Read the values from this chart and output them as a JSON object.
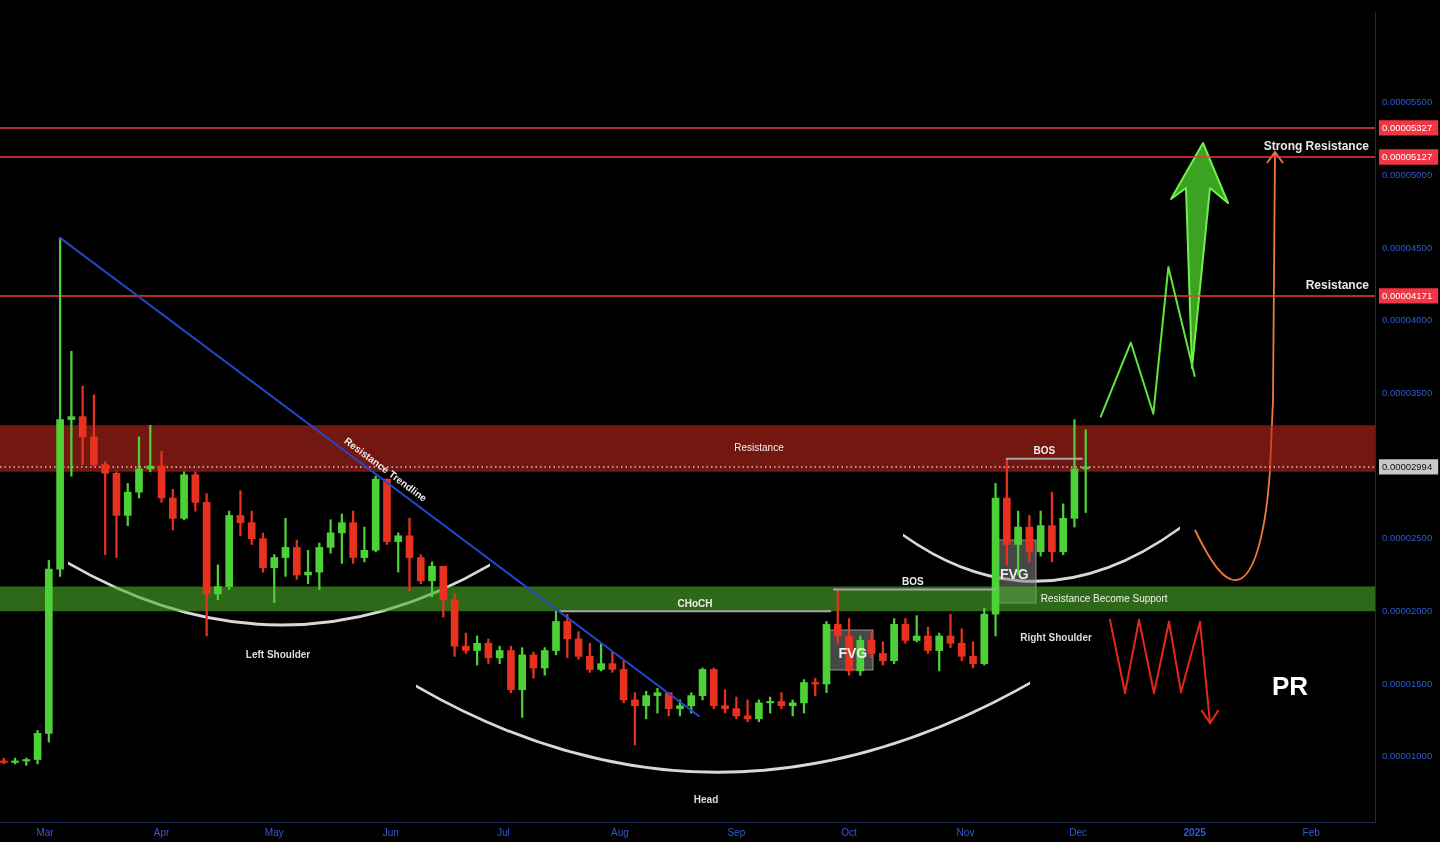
{
  "chart_data": {
    "type": "candlestick",
    "xlim": [
      "2024-02-18",
      "2025-02-18"
    ],
    "xticks": [
      {
        "value": "2024-03-01",
        "label": "Mar"
      },
      {
        "value": "2024-04-01",
        "label": "Apr"
      },
      {
        "value": "2024-05-01",
        "label": "May"
      },
      {
        "value": "2024-06-01",
        "label": "Jun"
      },
      {
        "value": "2024-07-01",
        "label": "Jul"
      },
      {
        "value": "2024-08-01",
        "label": "Aug"
      },
      {
        "value": "2024-09-01",
        "label": "Sep"
      },
      {
        "value": "2024-10-01",
        "label": "Oct"
      },
      {
        "value": "2024-11-01",
        "label": "Nov"
      },
      {
        "value": "2024-12-01",
        "label": "Dec"
      },
      {
        "value": "2025-01-01",
        "label": "2025"
      },
      {
        "value": "2025-02-01",
        "label": "Feb"
      }
    ],
    "ylim": [
      5.5e-06,
      6.12e-05
    ],
    "yticks": [
      {
        "value": 1e-05,
        "label": "0.00001000"
      },
      {
        "value": 1.5e-05,
        "label": "0.00001500"
      },
      {
        "value": 2e-05,
        "label": "0.00002000"
      },
      {
        "value": 2.5e-05,
        "label": "0.00002500"
      },
      {
        "value": 2.994e-05,
        "label": "0.00002994"
      },
      {
        "value": 3.5e-05,
        "label": "0.00003500"
      },
      {
        "value": 4e-05,
        "label": "0.00004000"
      },
      {
        "value": 4.171e-05,
        "label": "0.00004171"
      },
      {
        "value": 4.5e-05,
        "label": "0.00004500"
      },
      {
        "value": 5e-05,
        "label": "0.00005000"
      },
      {
        "value": 5.127e-05,
        "label": "0.00005127"
      },
      {
        "value": 5.327e-05,
        "label": "0.00005327"
      },
      {
        "value": 5.5e-05,
        "label": "0.00005500"
      }
    ],
    "series": [
      {
        "x": [
          "2024-02-19",
          "2024-02-22",
          "2024-02-25",
          "2024-02-28",
          "2024-03-02",
          "2024-03-05",
          "2024-03-08",
          "2024-03-11",
          "2024-03-14",
          "2024-03-17",
          "2024-03-20",
          "2024-03-23",
          "2024-03-26",
          "2024-03-29",
          "2024-04-01",
          "2024-04-04",
          "2024-04-07",
          "2024-04-10",
          "2024-04-13",
          "2024-04-16",
          "2024-04-19",
          "2024-04-22",
          "2024-04-25",
          "2024-04-28",
          "2024-05-01",
          "2024-05-04",
          "2024-05-07",
          "2024-05-10",
          "2024-05-13",
          "2024-05-16",
          "2024-05-19",
          "2024-05-22",
          "2024-05-25",
          "2024-05-28",
          "2024-05-31",
          "2024-06-03",
          "2024-06-06",
          "2024-06-09",
          "2024-06-12",
          "2024-06-15",
          "2024-06-18",
          "2024-06-21",
          "2024-06-24",
          "2024-06-27",
          "2024-06-30",
          "2024-07-03",
          "2024-07-06",
          "2024-07-09",
          "2024-07-12",
          "2024-07-15",
          "2024-07-18",
          "2024-07-21",
          "2024-07-24",
          "2024-07-27",
          "2024-07-30",
          "2024-08-02",
          "2024-08-05",
          "2024-08-08",
          "2024-08-11",
          "2024-08-14",
          "2024-08-17",
          "2024-08-20",
          "2024-08-23",
          "2024-08-26",
          "2024-08-29",
          "2024-09-01",
          "2024-09-04",
          "2024-09-07",
          "2024-09-10",
          "2024-09-13",
          "2024-09-16",
          "2024-09-19",
          "2024-09-22",
          "2024-09-25",
          "2024-09-28",
          "2024-10-01",
          "2024-10-04",
          "2024-10-07",
          "2024-10-10",
          "2024-10-13",
          "2024-10-16",
          "2024-10-19",
          "2024-10-22",
          "2024-10-25",
          "2024-10-28",
          "2024-10-31",
          "2024-11-03",
          "2024-11-06",
          "2024-11-09",
          "2024-11-12",
          "2024-11-15",
          "2024-11-18",
          "2024-11-21",
          "2024-11-24",
          "2024-11-27",
          "2024-11-30",
          "2024-12-03"
        ],
        "ohlc": [
          [
            9.7e-06,
            9.9e-06,
            9.5e-06,
            9.6e-06
          ],
          [
            9.6e-06,
            9.9e-06,
            9.5e-06,
            9.7e-06
          ],
          [
            9.7e-06,
            9.9e-06,
            9.4e-06,
            9.8e-06
          ],
          [
            9.8e-06,
            1.18e-05,
            9.5e-06,
            1.16e-05
          ],
          [
            1.16e-05,
            2.35e-05,
            1.1e-05,
            2.29e-05
          ],
          [
            2.29e-05,
            4.57e-05,
            2.24e-05,
            3.32e-05
          ],
          [
            3.32e-05,
            3.79e-05,
            2.93e-05,
            3.34e-05
          ],
          [
            3.34e-05,
            3.55e-05,
            3.01e-05,
            3.2e-05
          ],
          [
            3.2e-05,
            3.49e-05,
            3e-05,
            3.01e-05
          ],
          [
            3.01e-05,
            3.03e-05,
            2.39e-05,
            2.95e-05
          ],
          [
            2.95e-05,
            2.96e-05,
            2.37e-05,
            2.66e-05
          ],
          [
            2.66e-05,
            2.88e-05,
            2.59e-05,
            2.82e-05
          ],
          [
            2.82e-05,
            3.2e-05,
            2.78e-05,
            2.98e-05
          ],
          [
            2.98e-05,
            3.28e-05,
            2.96e-05,
            3e-05
          ],
          [
            3e-05,
            3.1e-05,
            2.75e-05,
            2.78e-05
          ],
          [
            2.78e-05,
            2.84e-05,
            2.56e-05,
            2.64e-05
          ],
          [
            2.64e-05,
            2.96e-05,
            2.63e-05,
            2.94e-05
          ],
          [
            2.94e-05,
            2.96e-05,
            2.69e-05,
            2.75e-05
          ],
          [
            2.75e-05,
            2.81e-05,
            1.83e-05,
            2.12e-05
          ],
          [
            2.12e-05,
            2.32e-05,
            2.08e-05,
            2.17e-05
          ],
          [
            2.17e-05,
            2.69e-05,
            2.15e-05,
            2.66e-05
          ],
          [
            2.66e-05,
            2.83e-05,
            2.52e-05,
            2.61e-05
          ],
          [
            2.61e-05,
            2.69e-05,
            2.46e-05,
            2.5e-05
          ],
          [
            2.5e-05,
            2.54e-05,
            2.27e-05,
            2.3e-05
          ],
          [
            2.3e-05,
            2.39e-05,
            2.06e-05,
            2.37e-05
          ],
          [
            2.37e-05,
            2.64e-05,
            2.24e-05,
            2.44e-05
          ],
          [
            2.44e-05,
            2.49e-05,
            2.22e-05,
            2.25e-05
          ],
          [
            2.25e-05,
            2.42e-05,
            2.19e-05,
            2.27e-05
          ],
          [
            2.27e-05,
            2.47e-05,
            2.15e-05,
            2.44e-05
          ],
          [
            2.44e-05,
            2.63e-05,
            2.4e-05,
            2.54e-05
          ],
          [
            2.54e-05,
            2.67e-05,
            2.33e-05,
            2.61e-05
          ],
          [
            2.61e-05,
            2.69e-05,
            2.33e-05,
            2.37e-05
          ],
          [
            2.37e-05,
            2.58e-05,
            2.34e-05,
            2.42e-05
          ],
          [
            2.42e-05,
            2.93e-05,
            2.41e-05,
            2.91e-05
          ],
          [
            2.91e-05,
            2.91e-05,
            2.46e-05,
            2.48e-05
          ],
          [
            2.48e-05,
            2.54e-05,
            2.27e-05,
            2.52e-05
          ],
          [
            2.52e-05,
            2.64e-05,
            2.14e-05,
            2.37e-05
          ],
          [
            2.37e-05,
            2.39e-05,
            2.19e-05,
            2.21e-05
          ],
          [
            2.21e-05,
            2.34e-05,
            2.1e-05,
            2.31e-05
          ],
          [
            2.31e-05,
            2.31e-05,
            1.96e-05,
            2.08e-05
          ],
          [
            2.08e-05,
            2.12e-05,
            1.69e-05,
            1.76e-05
          ],
          [
            1.76e-05,
            1.85e-05,
            1.71e-05,
            1.73e-05
          ],
          [
            1.73e-05,
            1.83e-05,
            1.63e-05,
            1.78e-05
          ],
          [
            1.78e-05,
            1.81e-05,
            1.64e-05,
            1.68e-05
          ],
          [
            1.68e-05,
            1.76e-05,
            1.64e-05,
            1.73e-05
          ],
          [
            1.73e-05,
            1.76e-05,
            1.44e-05,
            1.46e-05
          ],
          [
            1.46e-05,
            1.75e-05,
            1.27e-05,
            1.7e-05
          ],
          [
            1.7e-05,
            1.72e-05,
            1.54e-05,
            1.61e-05
          ],
          [
            1.61e-05,
            1.75e-05,
            1.56e-05,
            1.73e-05
          ],
          [
            1.73e-05,
            2e-05,
            1.7e-05,
            1.93e-05
          ],
          [
            1.93e-05,
            1.98e-05,
            1.68e-05,
            1.81e-05
          ],
          [
            1.81e-05,
            1.86e-05,
            1.67e-05,
            1.69e-05
          ],
          [
            1.69e-05,
            1.78e-05,
            1.58e-05,
            1.6e-05
          ],
          [
            1.6e-05,
            1.78e-05,
            1.59e-05,
            1.64e-05
          ],
          [
            1.64e-05,
            1.72e-05,
            1.58e-05,
            1.6e-05
          ],
          [
            1.6e-05,
            1.66e-05,
            1.37e-05,
            1.39e-05
          ],
          [
            1.39e-05,
            1.44e-05,
            1.08e-05,
            1.35e-05
          ],
          [
            1.35e-05,
            1.45e-05,
            1.26e-05,
            1.42e-05
          ],
          [
            1.42e-05,
            1.47e-05,
            1.3e-05,
            1.44e-05
          ],
          [
            1.44e-05,
            1.44e-05,
            1.28e-05,
            1.33e-05
          ],
          [
            1.33e-05,
            1.39e-05,
            1.28e-05,
            1.35e-05
          ],
          [
            1.35e-05,
            1.44e-05,
            1.3e-05,
            1.42e-05
          ],
          [
            1.42e-05,
            1.61e-05,
            1.39e-05,
            1.6e-05
          ],
          [
            1.6e-05,
            1.61e-05,
            1.33e-05,
            1.35e-05
          ],
          [
            1.35e-05,
            1.46e-05,
            1.3e-05,
            1.33e-05
          ],
          [
            1.33e-05,
            1.41e-05,
            1.26e-05,
            1.28e-05
          ],
          [
            1.28e-05,
            1.39e-05,
            1.24e-05,
            1.26e-05
          ],
          [
            1.26e-05,
            1.39e-05,
            1.24e-05,
            1.37e-05
          ],
          [
            1.37e-05,
            1.41e-05,
            1.3e-05,
            1.38e-05
          ],
          [
            1.38e-05,
            1.44e-05,
            1.33e-05,
            1.35e-05
          ],
          [
            1.35e-05,
            1.39e-05,
            1.28e-05,
            1.37e-05
          ],
          [
            1.37e-05,
            1.53e-05,
            1.3e-05,
            1.51e-05
          ],
          [
            1.51e-05,
            1.54e-05,
            1.42e-05,
            1.5e-05
          ],
          [
            1.5e-05,
            1.93e-05,
            1.44e-05,
            1.91e-05
          ],
          [
            1.91e-05,
            2.15e-05,
            1.78e-05,
            1.83e-05
          ],
          [
            1.83e-05,
            1.95e-05,
            1.56e-05,
            1.59e-05
          ],
          [
            1.59e-05,
            1.83e-05,
            1.56e-05,
            1.8e-05
          ],
          [
            1.8e-05,
            1.86e-05,
            1.68e-05,
            1.71e-05
          ],
          [
            1.71e-05,
            1.79e-05,
            1.63e-05,
            1.66e-05
          ],
          [
            1.66e-05,
            1.95e-05,
            1.64e-05,
            1.91e-05
          ],
          [
            1.91e-05,
            1.95e-05,
            1.78e-05,
            1.8e-05
          ],
          [
            1.8e-05,
            1.97e-05,
            1.79e-05,
            1.83e-05
          ],
          [
            1.83e-05,
            1.89e-05,
            1.71e-05,
            1.73e-05
          ],
          [
            1.73e-05,
            1.85e-05,
            1.59e-05,
            1.83e-05
          ],
          [
            1.83e-05,
            1.98e-05,
            1.75e-05,
            1.78e-05
          ],
          [
            1.78e-05,
            1.88e-05,
            1.66e-05,
            1.69e-05
          ],
          [
            1.69e-05,
            1.79e-05,
            1.61e-05,
            1.64e-05
          ],
          [
            1.64e-05,
            2.02e-05,
            1.63e-05,
            1.98e-05
          ],
          [
            1.98e-05,
            2.88e-05,
            1.83e-05,
            2.78e-05
          ],
          [
            2.78e-05,
            3.05e-05,
            2.32e-05,
            2.46e-05
          ],
          [
            2.46e-05,
            2.69e-05,
            2.25e-05,
            2.58e-05
          ],
          [
            2.58e-05,
            2.66e-05,
            2.34e-05,
            2.41e-05
          ],
          [
            2.41e-05,
            2.69e-05,
            2.38e-05,
            2.59e-05
          ],
          [
            2.59e-05,
            2.82e-05,
            2.34e-05,
            2.41e-05
          ],
          [
            2.41e-05,
            2.74e-05,
            2.39e-05,
            2.64e-05
          ],
          [
            2.64e-05,
            3.32e-05,
            2.58e-05,
            2.98e-05
          ],
          [
            2.98e-05,
            3.25e-05,
            2.68e-05,
            2.994e-05
          ]
        ],
        "colors": [
          "#e8321f",
          "#4cd137",
          "#4cd137",
          "#4cd137",
          "#4cd137",
          "#4cd137",
          "#4cd137",
          "#e8321f",
          "#e8321f",
          "#e8321f",
          "#e8321f",
          "#4cd137",
          "#4cd137",
          "#4cd137",
          "#e8321f",
          "#e8321f",
          "#4cd137",
          "#e8321f",
          "#e8321f",
          "#4cd137",
          "#4cd137",
          "#e8321f",
          "#e8321f",
          "#e8321f",
          "#4cd137",
          "#4cd137",
          "#e8321f",
          "#4cd137",
          "#4cd137",
          "#4cd137",
          "#4cd137",
          "#e8321f",
          "#4cd137",
          "#4cd137",
          "#e8321f",
          "#4cd137",
          "#e8321f",
          "#e8321f",
          "#4cd137",
          "#e8321f",
          "#e8321f",
          "#e8321f",
          "#4cd137",
          "#e8321f",
          "#4cd137",
          "#e8321f",
          "#4cd137",
          "#e8321f",
          "#4cd137",
          "#4cd137",
          "#e8321f",
          "#e8321f",
          "#e8321f",
          "#4cd137",
          "#e8321f",
          "#e8321f",
          "#e8321f",
          "#4cd137",
          "#4cd137",
          "#e8321f",
          "#4cd137",
          "#4cd137",
          "#4cd137",
          "#e8321f",
          "#e8321f",
          "#e8321f",
          "#e8321f",
          "#4cd137",
          "#4cd137",
          "#e8321f",
          "#4cd137",
          "#4cd137",
          "#e8321f",
          "#4cd137",
          "#e8321f",
          "#e8321f",
          "#4cd137",
          "#e8321f",
          "#e8321f",
          "#4cd137",
          "#e8321f",
          "#4cd137",
          "#e8321f",
          "#4cd137",
          "#e8321f",
          "#e8321f",
          "#e8321f",
          "#4cd137",
          "#4cd137",
          "#e8321f",
          "#4cd137",
          "#e8321f",
          "#4cd137",
          "#e8321f",
          "#4cd137",
          "#4cd137",
          "#4cd137"
        ]
      },
      {
        "type": "line",
        "x": [
          "2024-03-05",
          "2024-08-22"
        ],
        "values": [
          4.57e-05,
          1.28e-05
        ],
        "color": "#2547c8"
      },
      {
        "type": "line",
        "x": [
          "2024-07-16",
          "2024-09-26"
        ],
        "values": [
          2e-05,
          2e-05
        ],
        "color": "#a6a6a6"
      },
      {
        "type": "line",
        "x": [
          "2024-09-27",
          "2024-11-09"
        ],
        "values": [
          2.15e-05,
          2.15e-05
        ],
        "color": "#a6a6a6"
      },
      {
        "type": "line",
        "x": [
          "2024-11-12",
          "2024-12-02"
        ],
        "values": [
          3.05e-05,
          3.05e-05
        ],
        "color": "#a6a6a6"
      },
      {
        "type": "line",
        "x": [
          "2024-12-07",
          "2024-12-15",
          "2024-12-21",
          "2024-12-25",
          "2025-01-01"
        ],
        "values": [
          3.34e-05,
          3.85e-05,
          3.36e-05,
          4.37e-05,
          3.62e-05
        ],
        "color": "#5fe63c"
      }
    ],
    "bands": [
      {
        "axis": "y",
        "from": 2.96e-05,
        "to": 3.28e-05,
        "label": "Resistance",
        "color": "#c0281c"
      },
      {
        "axis": "y",
        "from": 2e-05,
        "to": 2.17e-05,
        "label": "Resistance Become Support",
        "color": "#4caf2a"
      }
    ],
    "ref_lines": [
      {
        "axis": "y",
        "value": 5.327e-05,
        "color": "#f23645"
      },
      {
        "axis": "y",
        "value": 5.127e-05,
        "label": "Strong Resistance",
        "color": "#f23645"
      },
      {
        "axis": "y",
        "value": 4.171e-05,
        "label": "Resistance",
        "color": "#f23645"
      },
      {
        "axis": "y",
        "value": 2.994e-05,
        "color": "#c8c8c8",
        "line_style": "dotted"
      }
    ],
    "annotations": [
      {
        "text": "Resistance Trendline",
        "x": "2024-05-29",
        "y": 2.92e-05
      },
      {
        "text": "CHoCH",
        "x": "2024-08-21",
        "y": 2e-05
      },
      {
        "text": "BOS",
        "x": "2024-10-18",
        "y": 2.15e-05
      },
      {
        "text": "BOS",
        "x": "2024-11-22",
        "y": 3.05e-05
      },
      {
        "text": "FVG",
        "x": "2024-10-02",
        "y": 1.71e-05
      },
      {
        "text": "FVG",
        "x": "2024-11-14",
        "y": 2.25e-05
      },
      "Left Shoulder",
      "Head",
      "Right Shoulder",
      "PR"
    ]
  }
}
